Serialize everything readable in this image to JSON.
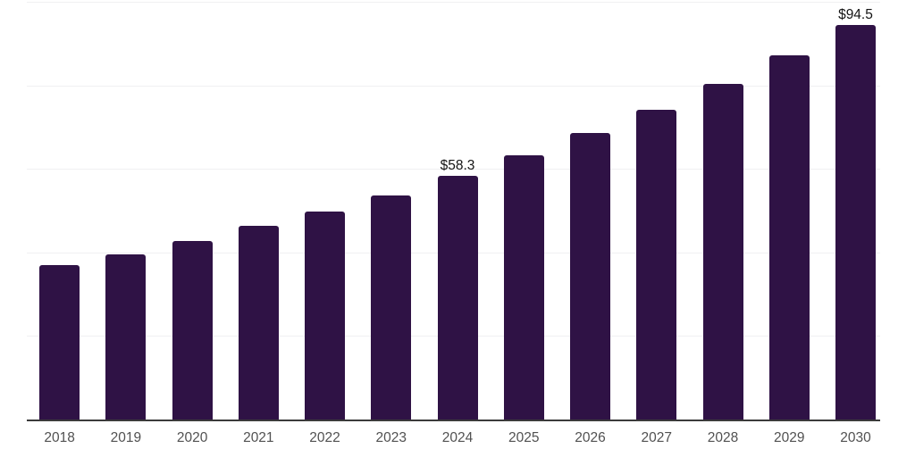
{
  "chart_data": {
    "type": "bar",
    "title": "",
    "xlabel": "",
    "ylabel": "",
    "categories": [
      "2018",
      "2019",
      "2020",
      "2021",
      "2022",
      "2023",
      "2024",
      "2025",
      "2026",
      "2027",
      "2028",
      "2029",
      "2030"
    ],
    "values": [
      36.9,
      39.6,
      42.8,
      46.3,
      49.7,
      53.7,
      58.3,
      63.2,
      68.5,
      74.2,
      80.4,
      87.2,
      94.5
    ],
    "data_labels": {
      "2024": "$58.3",
      "2030": "$94.5"
    },
    "ylim": [
      0,
      100
    ],
    "gridline_values": [
      0,
      20,
      40,
      60,
      80,
      100
    ],
    "grid_on": true,
    "y_tick_labels_shown": false,
    "legend_position": "none",
    "colors": {
      "bar": "#2f1245",
      "grid": "#f0f0f2",
      "axis": "#3b3b3b",
      "tick_label": "#515151",
      "data_label": "#141414",
      "background": "#ffffff"
    }
  }
}
